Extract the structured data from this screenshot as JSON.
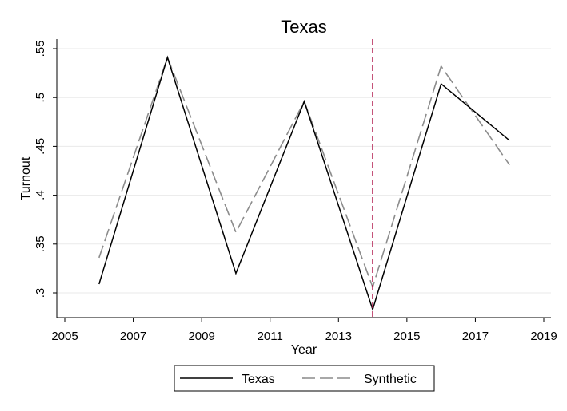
{
  "chart_data": {
    "type": "line",
    "title": "Texas",
    "xlabel": "Year",
    "ylabel": "Turnout",
    "xlim": [
      2005,
      2019
    ],
    "ylim": [
      0.275,
      0.56
    ],
    "x_ticks": [
      2005,
      2007,
      2009,
      2011,
      2013,
      2015,
      2017,
      2019
    ],
    "x_tick_labels": [
      "2005",
      "2007",
      "2009",
      "2011",
      "2013",
      "2015",
      "2017",
      "2019"
    ],
    "y_ticks": [
      0.3,
      0.35,
      0.4,
      0.45,
      0.5,
      0.55
    ],
    "y_tick_labels": [
      ".3",
      ".35",
      ".4",
      ".45",
      ".5",
      ".55"
    ],
    "grid": "horizontal",
    "legend_position": "bottom",
    "reference_line": {
      "x": 2014,
      "color": "#b0154a",
      "style": "dashed"
    },
    "series": [
      {
        "name": "Texas",
        "color": "#000000",
        "style": "solid",
        "x": [
          2006,
          2008,
          2010,
          2012,
          2014,
          2016,
          2018
        ],
        "values": [
          0.309,
          0.541,
          0.32,
          0.496,
          0.283,
          0.514,
          0.456
        ]
      },
      {
        "name": "Synthetic",
        "color": "#8c8c8c",
        "style": "dashed",
        "x": [
          2006,
          2008,
          2010,
          2012,
          2014,
          2016,
          2018
        ],
        "values": [
          0.336,
          0.541,
          0.362,
          0.496,
          0.306,
          0.532,
          0.431
        ]
      }
    ]
  }
}
